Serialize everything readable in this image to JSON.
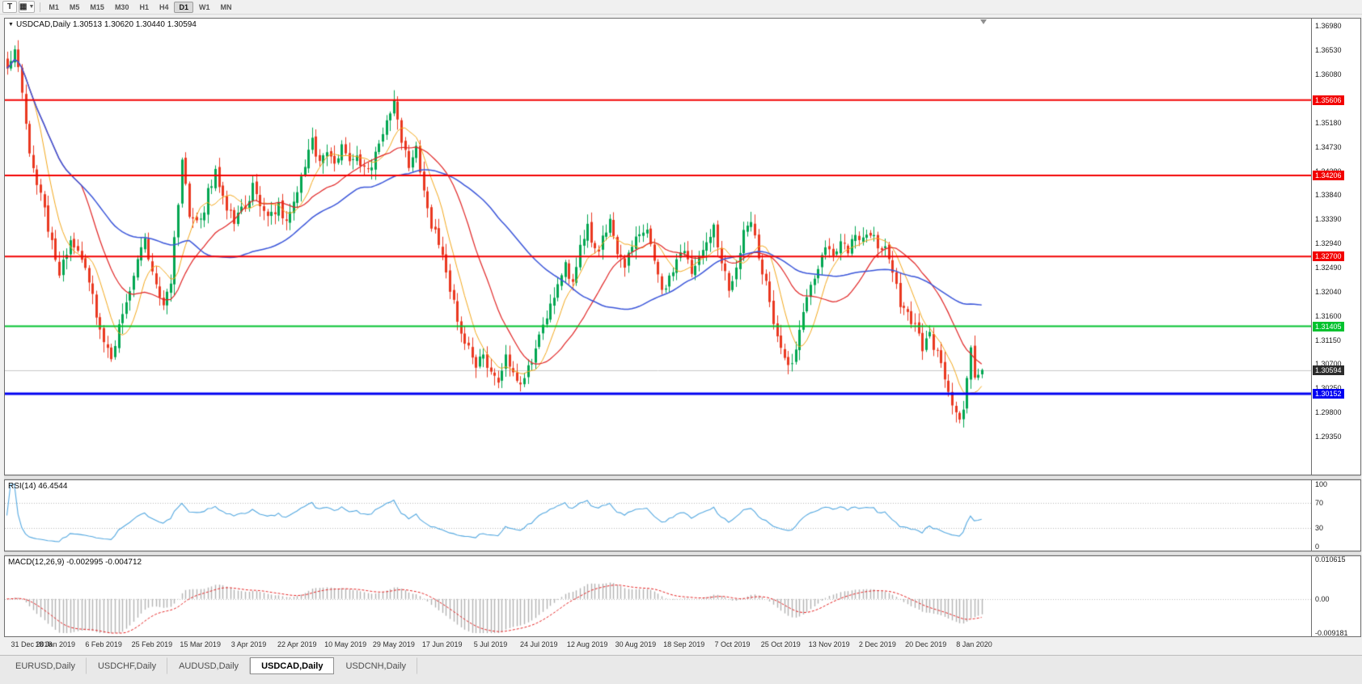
{
  "toolbar": {
    "chart_tool_label": "T",
    "drawing_tool_icon": "▦",
    "timeframes": [
      "M1",
      "M5",
      "M15",
      "M30",
      "H1",
      "H4",
      "D1",
      "W1",
      "MN"
    ],
    "active_timeframe": "D1"
  },
  "tabs": {
    "items": [
      "EURUSD,Daily",
      "USDCHF,Daily",
      "AUDUSD,Daily",
      "USDCAD,Daily",
      "USDCNH,Daily"
    ],
    "active": "USDCAD,Daily"
  },
  "colors": {
    "candle_up": "#00a651",
    "candle_down": "#ea3820",
    "current_line": "#c9c9c9",
    "current_badge": "#2b2b2b",
    "rsi_level": "#b8b8b8",
    "macd_hist": "#b2b2b2",
    "macd_signal": "#e42222",
    "macd_zero": "#bdbdbd"
  },
  "chart_data": {
    "type": "candlestick",
    "symbol": "USDCAD",
    "timeframe": "Daily",
    "title": "USDCAD,Daily 1.30513 1.30620 1.30440 1.30594",
    "candle_count": 263,
    "candle_spacing": 4.6,
    "last_candle": {
      "open": 1.30513,
      "high": 1.3062,
      "low": 1.3044,
      "close": 1.30594
    },
    "current_price": {
      "value": 1.30594,
      "label": "1.30594"
    },
    "y_axis": {
      "min": 1.2865,
      "max": 1.3712,
      "ticks": [
        1.3698,
        1.3653,
        1.3608,
        1.3563,
        1.3518,
        1.3473,
        1.3428,
        1.3384,
        1.3339,
        1.3294,
        1.3249,
        1.3204,
        1.316,
        1.3115,
        1.307,
        1.3025,
        1.298,
        1.2935
      ]
    },
    "x_axis": {
      "labels": [
        "31 Dec 2018",
        "18 Jan 2019",
        "6 Feb 2019",
        "25 Feb 2019",
        "15 Mar 2019",
        "3 Apr 2019",
        "22 Apr 2019",
        "10 May 2019",
        "29 May 2019",
        "17 Jun 2019",
        "5 Jul 2019",
        "24 Jul 2019",
        "12 Aug 2019",
        "30 Aug 2019",
        "18 Sep 2019",
        "7 Oct 2019",
        "25 Oct 2019",
        "13 Nov 2019",
        "2 Dec 2019",
        "20 Dec 2019",
        "8 Jan 2020"
      ],
      "indices": [
        0,
        13,
        26,
        39,
        52,
        65,
        78,
        91,
        104,
        117,
        130,
        143,
        156,
        169,
        182,
        195,
        208,
        221,
        234,
        247,
        260
      ]
    },
    "hlines": [
      {
        "price": 1.35606,
        "label": "1.35606",
        "color": "#f20000",
        "width": 2
      },
      {
        "price": 1.34206,
        "label": "1.34206",
        "color": "#f20000",
        "width": 2
      },
      {
        "price": 1.327,
        "label": "1.32700",
        "color": "#f20000",
        "width": 2
      },
      {
        "price": 1.31405,
        "label": "1.31405",
        "color": "#00c22e",
        "width": 2
      },
      {
        "price": 1.30152,
        "label": "1.30152",
        "color": "#0000f2",
        "width": 3
      }
    ],
    "moving_averages": [
      {
        "period": 8,
        "color": "#f2a71b",
        "width": 1
      },
      {
        "period": 21,
        "color": "#e02424",
        "width": 1.2
      },
      {
        "period": 50,
        "color": "#3a55d9",
        "width": 1.5
      }
    ],
    "close_path": [
      [
        0,
        1.3615
      ],
      [
        2,
        1.3655
      ],
      [
        4,
        1.3585
      ],
      [
        6,
        1.347
      ],
      [
        9,
        1.3385
      ],
      [
        12,
        1.329
      ],
      [
        14,
        1.324
      ],
      [
        17,
        1.33
      ],
      [
        20,
        1.327
      ],
      [
        23,
        1.319
      ],
      [
        26,
        1.312
      ],
      [
        28,
        1.308
      ],
      [
        31,
        1.3165
      ],
      [
        34,
        1.324
      ],
      [
        37,
        1.33
      ],
      [
        39,
        1.3245
      ],
      [
        42,
        1.317
      ],
      [
        44,
        1.323
      ],
      [
        47,
        1.344
      ],
      [
        49,
        1.335
      ],
      [
        52,
        1.3335
      ],
      [
        54,
        1.339
      ],
      [
        56,
        1.343
      ],
      [
        59,
        1.336
      ],
      [
        61,
        1.333
      ],
      [
        64,
        1.3365
      ],
      [
        66,
        1.34
      ],
      [
        68,
        1.337
      ],
      [
        70,
        1.334
      ],
      [
        73,
        1.3365
      ],
      [
        75,
        1.3335
      ],
      [
        78,
        1.3385
      ],
      [
        80,
        1.344
      ],
      [
        82,
        1.348
      ],
      [
        84,
        1.345
      ],
      [
        86,
        1.347
      ],
      [
        88,
        1.344
      ],
      [
        90,
        1.348
      ],
      [
        92,
        1.3445
      ],
      [
        94,
        1.3465
      ],
      [
        96,
        1.343
      ],
      [
        98,
        1.3445
      ],
      [
        100,
        1.3485
      ],
      [
        102,
        1.352
      ],
      [
        104,
        1.3555
      ],
      [
        106,
        1.348
      ],
      [
        108,
        1.3445
      ],
      [
        110,
        1.3465
      ],
      [
        112,
        1.3385
      ],
      [
        114,
        1.333
      ],
      [
        116,
        1.329
      ],
      [
        118,
        1.3245
      ],
      [
        120,
        1.3185
      ],
      [
        122,
        1.3125
      ],
      [
        124,
        1.3095
      ],
      [
        126,
        1.306
      ],
      [
        128,
        1.309
      ],
      [
        130,
        1.305
      ],
      [
        132,
        1.303
      ],
      [
        134,
        1.308
      ],
      [
        136,
        1.306
      ],
      [
        138,
        1.304
      ],
      [
        140,
        1.3065
      ],
      [
        142,
        1.31
      ],
      [
        144,
        1.314
      ],
      [
        146,
        1.318
      ],
      [
        148,
        1.322
      ],
      [
        150,
        1.325
      ],
      [
        152,
        1.3225
      ],
      [
        154,
        1.3285
      ],
      [
        156,
        1.332
      ],
      [
        158,
        1.3275
      ],
      [
        160,
        1.3305
      ],
      [
        162,
        1.333
      ],
      [
        164,
        1.3285
      ],
      [
        166,
        1.3255
      ],
      [
        168,
        1.3295
      ],
      [
        170,
        1.3315
      ],
      [
        172,
        1.333
      ],
      [
        174,
        1.3255
      ],
      [
        176,
        1.3205
      ],
      [
        178,
        1.3235
      ],
      [
        180,
        1.3265
      ],
      [
        182,
        1.3275
      ],
      [
        184,
        1.3245
      ],
      [
        186,
        1.3265
      ],
      [
        188,
        1.3295
      ],
      [
        190,
        1.3325
      ],
      [
        192,
        1.3265
      ],
      [
        194,
        1.3205
      ],
      [
        196,
        1.3255
      ],
      [
        198,
        1.331
      ],
      [
        200,
        1.333
      ],
      [
        202,
        1.3275
      ],
      [
        204,
        1.3215
      ],
      [
        206,
        1.3155
      ],
      [
        208,
        1.3095
      ],
      [
        210,
        1.306
      ],
      [
        212,
        1.3105
      ],
      [
        214,
        1.3165
      ],
      [
        216,
        1.3215
      ],
      [
        218,
        1.3255
      ],
      [
        220,
        1.329
      ],
      [
        222,
        1.3275
      ],
      [
        224,
        1.33
      ],
      [
        226,
        1.3285
      ],
      [
        228,
        1.331
      ],
      [
        230,
        1.3295
      ],
      [
        232,
        1.3315
      ],
      [
        234,
        1.3295
      ],
      [
        236,
        1.328
      ],
      [
        238,
        1.3235
      ],
      [
        240,
        1.3185
      ],
      [
        242,
        1.317
      ],
      [
        244,
        1.3135
      ],
      [
        246,
        1.3105
      ],
      [
        248,
        1.3125
      ],
      [
        250,
        1.309
      ],
      [
        252,
        1.304
      ],
      [
        254,
        1.299
      ],
      [
        256,
        1.296
      ],
      [
        257,
        1.2985
      ],
      [
        258,
        1.3045
      ],
      [
        259,
        1.31
      ],
      [
        260,
        1.3045
      ],
      [
        261,
        1.3052
      ],
      [
        262,
        1.30594
      ]
    ],
    "indicators": {
      "rsi": {
        "label": "RSI(14) 46.4544",
        "period": 14,
        "value": "46.4544",
        "levels": [
          100,
          70,
          30,
          0
        ],
        "color": "#54a8e0"
      },
      "macd": {
        "label": "MACD(12,26,9) -0.002995 -0.004712",
        "fast": 12,
        "slow": 26,
        "signal": 9,
        "value": "-0.002995",
        "signal_value": "-0.004712",
        "axis": [
          "0.010615",
          "0.00",
          "-0.009181"
        ],
        "axis_values": [
          0.010615,
          0,
          -0.009181
        ]
      }
    }
  }
}
